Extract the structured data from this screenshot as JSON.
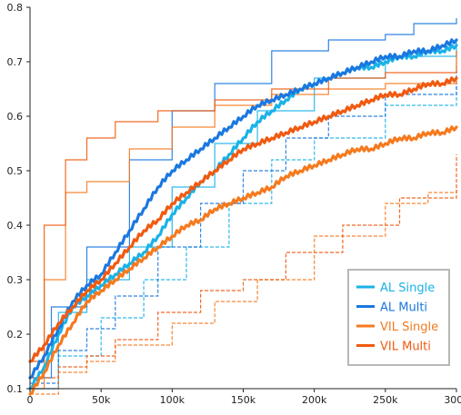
{
  "chart_data": {
    "type": "line",
    "title": "",
    "xlabel": "",
    "ylabel": "",
    "xlim": [
      0,
      300000
    ],
    "ylim": [
      0.1,
      0.8
    ],
    "grid": false,
    "legend_position": "bottom-right",
    "x_ticks": [
      0,
      50000,
      100000,
      150000,
      200000,
      250000,
      300000
    ],
    "x_tick_labels": [
      "0",
      "50k",
      "100k",
      "150k",
      "200k",
      "250k",
      "300k"
    ],
    "y_ticks": [
      0.1,
      0.2,
      0.3,
      0.4,
      0.5,
      0.6,
      0.7,
      0.8
    ],
    "y_tick_labels": [
      "0.1",
      "0.2",
      "0.3",
      "0.4",
      "0.5",
      "0.6",
      "0.7",
      "0.8"
    ],
    "series": [
      {
        "name": "AL Single",
        "color": "#1ab2e8",
        "points": [
          [
            0,
            0.1
          ],
          [
            10000,
            0.14
          ],
          [
            20000,
            0.2
          ],
          [
            30000,
            0.25
          ],
          [
            40000,
            0.27
          ],
          [
            50000,
            0.29
          ],
          [
            60000,
            0.31
          ],
          [
            70000,
            0.33
          ],
          [
            80000,
            0.35
          ],
          [
            90000,
            0.38
          ],
          [
            100000,
            0.42
          ],
          [
            110000,
            0.45
          ],
          [
            120000,
            0.48
          ],
          [
            130000,
            0.5
          ],
          [
            140000,
            0.53
          ],
          [
            150000,
            0.56
          ],
          [
            160000,
            0.59
          ],
          [
            170000,
            0.61
          ],
          [
            180000,
            0.63
          ],
          [
            190000,
            0.65
          ],
          [
            200000,
            0.66
          ],
          [
            210000,
            0.67
          ],
          [
            220000,
            0.68
          ],
          [
            230000,
            0.69
          ],
          [
            240000,
            0.69
          ],
          [
            250000,
            0.7
          ],
          [
            260000,
            0.71
          ],
          [
            270000,
            0.71
          ],
          [
            280000,
            0.72
          ],
          [
            290000,
            0.72
          ],
          [
            300000,
            0.73
          ]
        ]
      },
      {
        "name": "AL Multi",
        "color": "#1a78e0",
        "points": [
          [
            0,
            0.12
          ],
          [
            10000,
            0.16
          ],
          [
            20000,
            0.21
          ],
          [
            30000,
            0.26
          ],
          [
            40000,
            0.29
          ],
          [
            50000,
            0.31
          ],
          [
            60000,
            0.35
          ],
          [
            70000,
            0.39
          ],
          [
            80000,
            0.43
          ],
          [
            90000,
            0.47
          ],
          [
            100000,
            0.5
          ],
          [
            110000,
            0.52
          ],
          [
            120000,
            0.54
          ],
          [
            130000,
            0.56
          ],
          [
            140000,
            0.58
          ],
          [
            150000,
            0.6
          ],
          [
            160000,
            0.62
          ],
          [
            170000,
            0.63
          ],
          [
            180000,
            0.64
          ],
          [
            190000,
            0.65
          ],
          [
            200000,
            0.66
          ],
          [
            210000,
            0.67
          ],
          [
            220000,
            0.68
          ],
          [
            230000,
            0.69
          ],
          [
            240000,
            0.7
          ],
          [
            250000,
            0.71
          ],
          [
            260000,
            0.71
          ],
          [
            270000,
            0.72
          ],
          [
            280000,
            0.72
          ],
          [
            290000,
            0.73
          ],
          [
            300000,
            0.74
          ]
        ]
      },
      {
        "name": "VIL Single",
        "color": "#f57a1e",
        "points": [
          [
            0,
            0.09
          ],
          [
            10000,
            0.13
          ],
          [
            20000,
            0.18
          ],
          [
            30000,
            0.22
          ],
          [
            40000,
            0.26
          ],
          [
            50000,
            0.28
          ],
          [
            60000,
            0.3
          ],
          [
            70000,
            0.32
          ],
          [
            80000,
            0.34
          ],
          [
            90000,
            0.36
          ],
          [
            100000,
            0.38
          ],
          [
            110000,
            0.4
          ],
          [
            120000,
            0.41
          ],
          [
            130000,
            0.43
          ],
          [
            140000,
            0.44
          ],
          [
            150000,
            0.45
          ],
          [
            160000,
            0.46
          ],
          [
            170000,
            0.47
          ],
          [
            180000,
            0.49
          ],
          [
            190000,
            0.5
          ],
          [
            200000,
            0.51
          ],
          [
            210000,
            0.52
          ],
          [
            220000,
            0.53
          ],
          [
            230000,
            0.54
          ],
          [
            240000,
            0.54
          ],
          [
            250000,
            0.55
          ],
          [
            260000,
            0.56
          ],
          [
            270000,
            0.56
          ],
          [
            280000,
            0.57
          ],
          [
            290000,
            0.57
          ],
          [
            300000,
            0.58
          ]
        ]
      },
      {
        "name": "VIL Multi",
        "color": "#f05a10",
        "points": [
          [
            0,
            0.15
          ],
          [
            10000,
            0.18
          ],
          [
            20000,
            0.22
          ],
          [
            30000,
            0.25
          ],
          [
            40000,
            0.28
          ],
          [
            50000,
            0.3
          ],
          [
            60000,
            0.33
          ],
          [
            70000,
            0.36
          ],
          [
            80000,
            0.39
          ],
          [
            90000,
            0.41
          ],
          [
            100000,
            0.44
          ],
          [
            110000,
            0.46
          ],
          [
            120000,
            0.48
          ],
          [
            130000,
            0.5
          ],
          [
            140000,
            0.52
          ],
          [
            150000,
            0.54
          ],
          [
            160000,
            0.55
          ],
          [
            170000,
            0.56
          ],
          [
            180000,
            0.57
          ],
          [
            190000,
            0.58
          ],
          [
            200000,
            0.59
          ],
          [
            210000,
            0.6
          ],
          [
            220000,
            0.61
          ],
          [
            230000,
            0.62
          ],
          [
            240000,
            0.63
          ],
          [
            250000,
            0.64
          ],
          [
            260000,
            0.64
          ],
          [
            270000,
            0.65
          ],
          [
            280000,
            0.66
          ],
          [
            290000,
            0.66
          ],
          [
            300000,
            0.67
          ]
        ]
      }
    ],
    "band_lines": [
      {
        "series": "AL Single",
        "color": "#1ab2e8",
        "points": [
          [
            0,
            0.1
          ],
          [
            20000,
            0.24
          ],
          [
            40000,
            0.3
          ],
          [
            70000,
            0.36
          ],
          [
            100000,
            0.47
          ],
          [
            130000,
            0.55
          ],
          [
            160000,
            0.61
          ],
          [
            200000,
            0.67
          ],
          [
            250000,
            0.71
          ],
          [
            300000,
            0.74
          ]
        ]
      },
      {
        "series": "AL Single",
        "color": "#1ab2e8",
        "points": [
          [
            0,
            0.1
          ],
          [
            20000,
            0.16
          ],
          [
            50000,
            0.23
          ],
          [
            80000,
            0.3
          ],
          [
            110000,
            0.36
          ],
          [
            140000,
            0.44
          ],
          [
            170000,
            0.52
          ],
          [
            200000,
            0.56
          ],
          [
            250000,
            0.62
          ],
          [
            300000,
            0.66
          ]
        ]
      },
      {
        "series": "AL Multi",
        "color": "#1a78e0",
        "points": [
          [
            0,
            0.12
          ],
          [
            15000,
            0.25
          ],
          [
            40000,
            0.36
          ],
          [
            70000,
            0.52
          ],
          [
            100000,
            0.61
          ],
          [
            130000,
            0.66
          ],
          [
            170000,
            0.72
          ],
          [
            210000,
            0.74
          ],
          [
            250000,
            0.75
          ],
          [
            270000,
            0.77
          ],
          [
            300000,
            0.78
          ]
        ]
      },
      {
        "series": "AL Multi",
        "color": "#1a78e0",
        "points": [
          [
            0,
            0.11
          ],
          [
            20000,
            0.17
          ],
          [
            40000,
            0.21
          ],
          [
            60000,
            0.27
          ],
          [
            90000,
            0.36
          ],
          [
            120000,
            0.44
          ],
          [
            150000,
            0.5
          ],
          [
            180000,
            0.56
          ],
          [
            210000,
            0.6
          ],
          [
            250000,
            0.64
          ],
          [
            300000,
            0.69
          ]
        ]
      },
      {
        "series": "VIL Single",
        "color": "#f57a1e",
        "points": [
          [
            0,
            0.1
          ],
          [
            10000,
            0.3
          ],
          [
            25000,
            0.46
          ],
          [
            40000,
            0.48
          ],
          [
            70000,
            0.54
          ],
          [
            100000,
            0.58
          ],
          [
            130000,
            0.62
          ],
          [
            170000,
            0.64
          ],
          [
            210000,
            0.65
          ],
          [
            250000,
            0.66
          ],
          [
            300000,
            0.67
          ]
        ]
      },
      {
        "series": "VIL Single",
        "color": "#f57a1e",
        "points": [
          [
            0,
            0.09
          ],
          [
            20000,
            0.13
          ],
          [
            40000,
            0.15
          ],
          [
            60000,
            0.18
          ],
          [
            100000,
            0.22
          ],
          [
            130000,
            0.26
          ],
          [
            160000,
            0.3
          ],
          [
            200000,
            0.38
          ],
          [
            250000,
            0.44
          ],
          [
            280000,
            0.46
          ],
          [
            300000,
            0.47
          ]
        ]
      },
      {
        "series": "VIL Multi",
        "color": "#f05a10",
        "points": [
          [
            0,
            0.15
          ],
          [
            10000,
            0.4
          ],
          [
            25000,
            0.52
          ],
          [
            40000,
            0.56
          ],
          [
            60000,
            0.59
          ],
          [
            90000,
            0.61
          ],
          [
            130000,
            0.63
          ],
          [
            170000,
            0.65
          ],
          [
            210000,
            0.67
          ],
          [
            250000,
            0.68
          ],
          [
            300000,
            0.72
          ]
        ]
      },
      {
        "series": "VIL Multi",
        "color": "#f05a10",
        "points": [
          [
            0,
            0.12
          ],
          [
            20000,
            0.14
          ],
          [
            40000,
            0.16
          ],
          [
            60000,
            0.19
          ],
          [
            90000,
            0.24
          ],
          [
            120000,
            0.28
          ],
          [
            150000,
            0.3
          ],
          [
            180000,
            0.35
          ],
          [
            220000,
            0.4
          ],
          [
            260000,
            0.45
          ],
          [
            300000,
            0.53
          ]
        ]
      }
    ]
  }
}
